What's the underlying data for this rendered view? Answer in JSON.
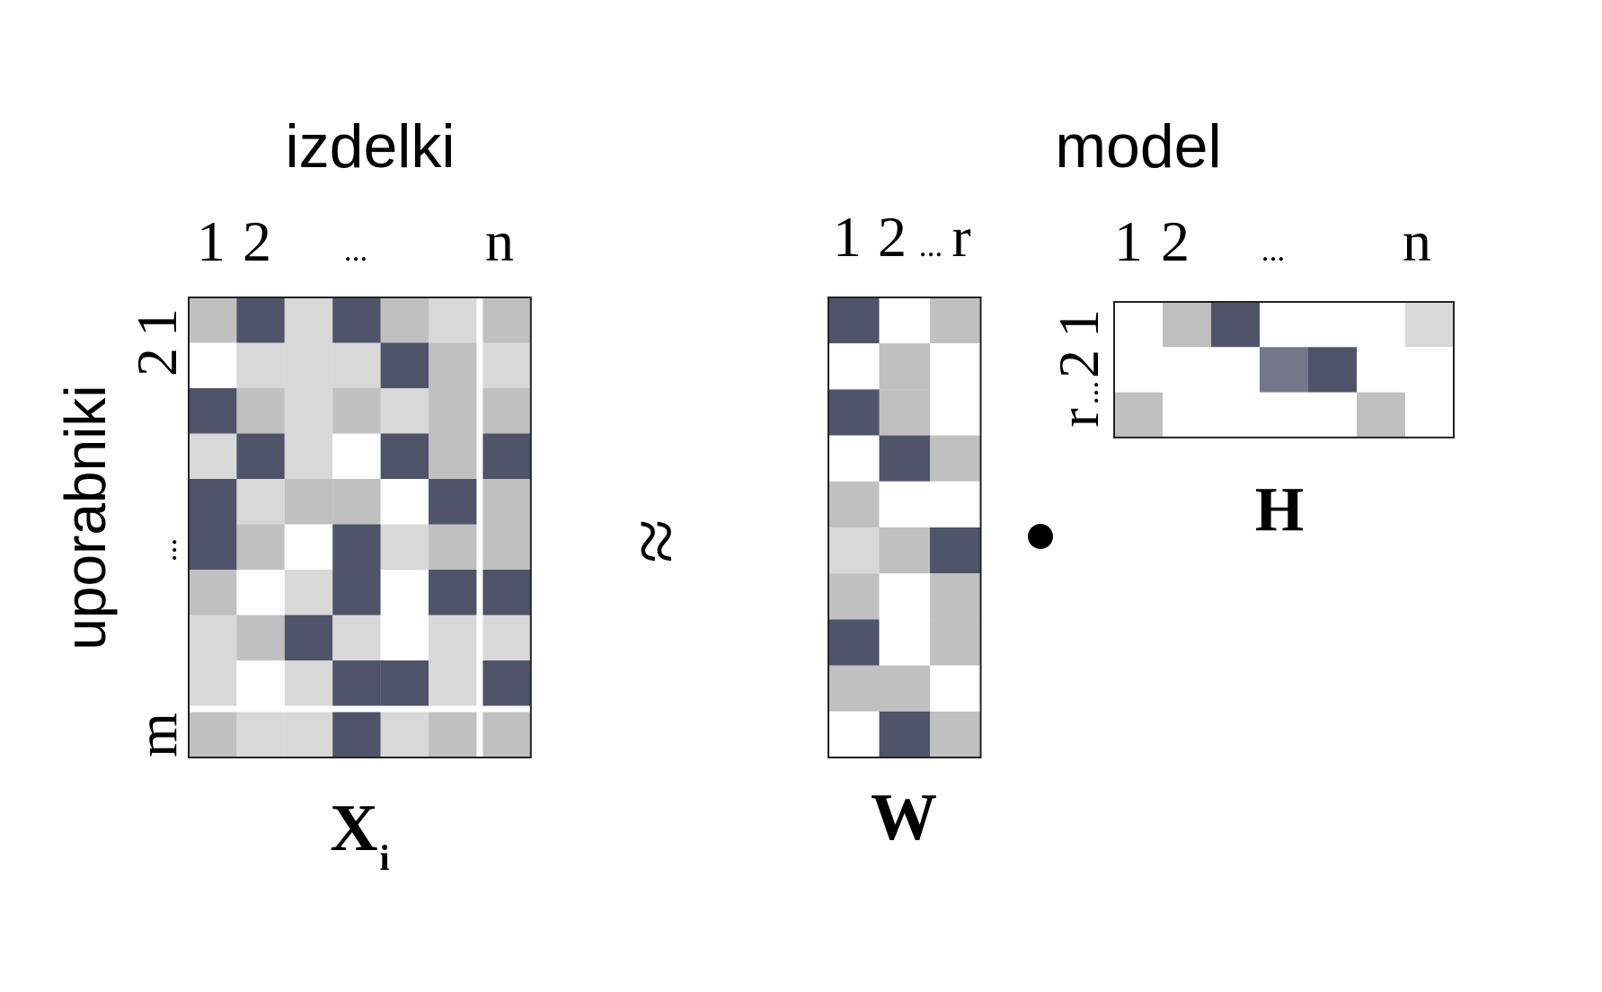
{
  "colors": {
    "dark": "#4f546b",
    "mid_dark": "#737789",
    "gray": "#c0c0c0",
    "light": "#d8d8d8",
    "white": "#ffffff",
    "border": "#222222"
  },
  "labels": {
    "items_heading": "izdelki",
    "model_heading": "model",
    "users_label": "uporabniki",
    "approx_symbol": "≈",
    "dot_symbol": "●",
    "x_name": "X",
    "x_sub": "i",
    "w_name": "W",
    "h_name": "H"
  },
  "x_matrix": {
    "col_ticks": [
      "1",
      "2",
      "...",
      "n"
    ],
    "row_ticks": [
      "1",
      "2",
      "...",
      "m"
    ],
    "cells": [
      [
        "G",
        "D",
        "L",
        "D",
        "G",
        "L",
        "G"
      ],
      [
        "W",
        "L",
        "L",
        "L",
        "D",
        "G",
        "L"
      ],
      [
        "D",
        "G",
        "L",
        "G",
        "L",
        "G",
        "G"
      ],
      [
        "L",
        "D",
        "L",
        "W",
        "D",
        "G",
        "D"
      ],
      [
        "D",
        "L",
        "G",
        "G",
        "W",
        "D",
        "G"
      ],
      [
        "D",
        "G",
        "W",
        "D",
        "L",
        "G",
        "G"
      ],
      [
        "G",
        "W",
        "L",
        "D",
        "W",
        "D",
        "D"
      ],
      [
        "L",
        "G",
        "D",
        "L",
        "W",
        "L",
        "L"
      ],
      [
        "L",
        "W",
        "L",
        "D",
        "D",
        "L",
        "D"
      ],
      [
        "G",
        "L",
        "L",
        "D",
        "L",
        "G",
        "G"
      ]
    ]
  },
  "w_matrix": {
    "col_ticks": [
      "1",
      "2",
      "...",
      "r"
    ],
    "cells": [
      [
        "D",
        "W",
        "G"
      ],
      [
        "W",
        "G",
        "W"
      ],
      [
        "D",
        "G",
        "W"
      ],
      [
        "W",
        "D",
        "G"
      ],
      [
        "G",
        "W",
        "W"
      ],
      [
        "L",
        "G",
        "D"
      ],
      [
        "G",
        "W",
        "G"
      ],
      [
        "D",
        "W",
        "G"
      ],
      [
        "G",
        "G",
        "W"
      ],
      [
        "W",
        "D",
        "G"
      ]
    ]
  },
  "h_matrix": {
    "col_ticks": [
      "1",
      "2",
      "...",
      "n"
    ],
    "row_ticks": [
      "1",
      "2",
      "...",
      "r"
    ],
    "cells": [
      [
        "W",
        "G",
        "D",
        "W",
        "W",
        "W",
        "L"
      ],
      [
        "W",
        "W",
        "W",
        "M",
        "D",
        "W",
        "W"
      ],
      [
        "G",
        "W",
        "W",
        "W",
        "W",
        "G",
        "W"
      ]
    ]
  }
}
